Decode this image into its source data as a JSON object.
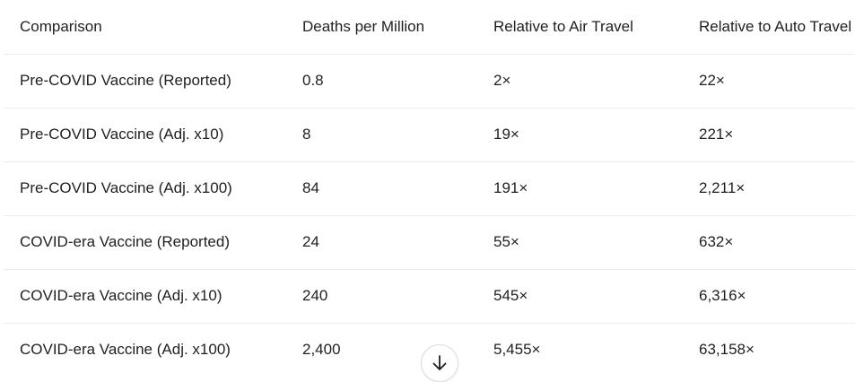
{
  "table": {
    "headers": [
      "Comparison",
      "Deaths per Million",
      "Relative to Air Travel",
      "Relative to Auto Travel"
    ],
    "rows": [
      [
        "Pre-COVID Vaccine (Reported)",
        "0.8",
        "2×",
        "22×"
      ],
      [
        "Pre-COVID Vaccine (Adj. x10)",
        "8",
        "19×",
        "221×"
      ],
      [
        "Pre-COVID Vaccine (Adj. x100)",
        "84",
        "191×",
        "2,211×"
      ],
      [
        "COVID-era Vaccine (Reported)",
        "24",
        "55×",
        "632×"
      ],
      [
        "COVID-era Vaccine (Adj. x10)",
        "240",
        "545×",
        "6,316×"
      ],
      [
        "COVID-era Vaccine (Adj. x100)",
        "2,400",
        "5,455×",
        "63,158×"
      ]
    ]
  },
  "scroll_button": {
    "icon": "arrow-down-icon"
  }
}
